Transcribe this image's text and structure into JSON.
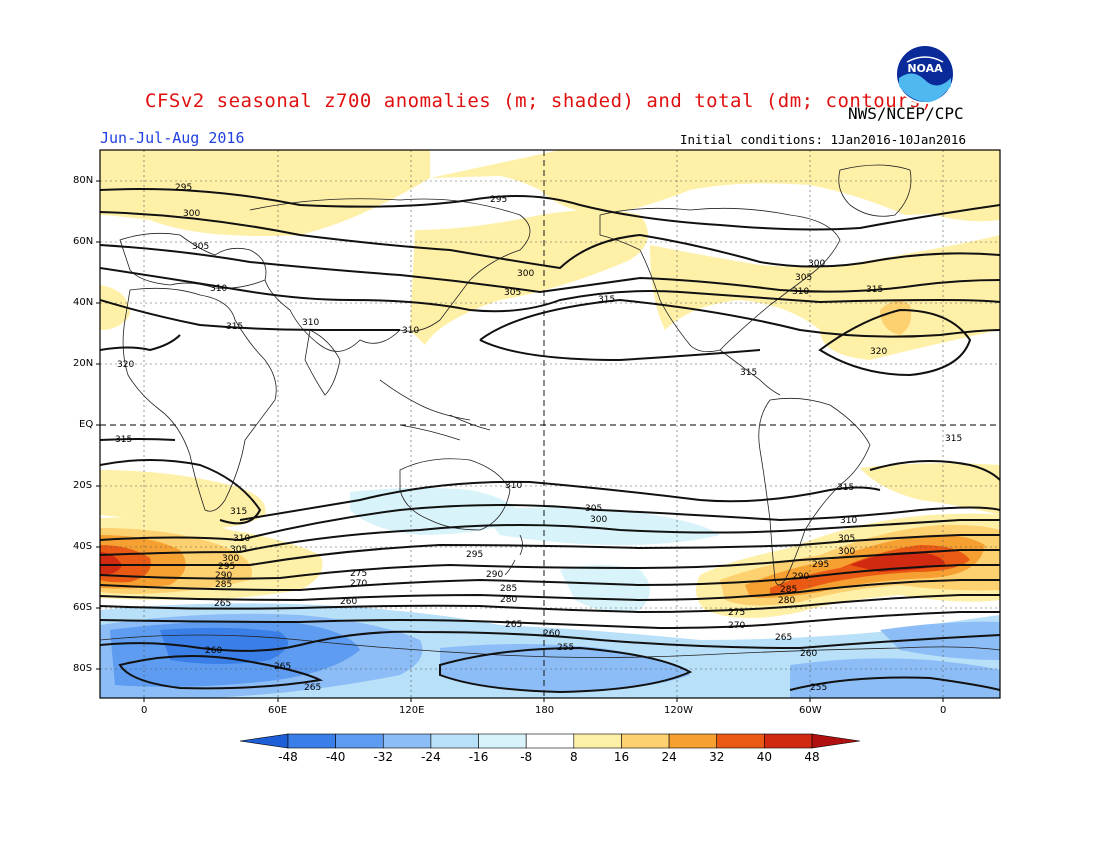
{
  "header": {
    "title": "CFSv2 seasonal z700 anomalies (m; shaded) and total (dm; contours)",
    "agency": "NWS/NCEP/CPC",
    "season": "Jun-Jul-Aug 2016",
    "initial_conditions": "Initial conditions: 1Jan2016-10Jan2016",
    "logo_text": "NOAA"
  },
  "axes": {
    "lat_labels": [
      "80N",
      "60N",
      "40N",
      "20N",
      "EQ",
      "20S",
      "40S",
      "60S",
      "80S"
    ],
    "lon_labels": [
      "0",
      "60E",
      "120E",
      "180",
      "120W",
      "60W",
      "0"
    ]
  },
  "colorbar": {
    "ticks": [
      "-48",
      "-40",
      "-32",
      "-24",
      "-16",
      "-8",
      "8",
      "16",
      "24",
      "32",
      "40",
      "48"
    ],
    "colors": [
      "#1e5fd8",
      "#3a7fe8",
      "#5d9cf0",
      "#8cbdf6",
      "#b8e0f8",
      "#d8f4fa",
      "#ffffff",
      "#fff0a8",
      "#fdd070",
      "#f5a030",
      "#ea5a14",
      "#d22a10",
      "#b01010"
    ]
  },
  "contours": {
    "labels": [
      "295",
      "300",
      "305",
      "310",
      "315",
      "320",
      "315",
      "310",
      "305",
      "300",
      "295",
      "290",
      "285",
      "280",
      "275",
      "270",
      "265",
      "260",
      "255"
    ]
  }
}
